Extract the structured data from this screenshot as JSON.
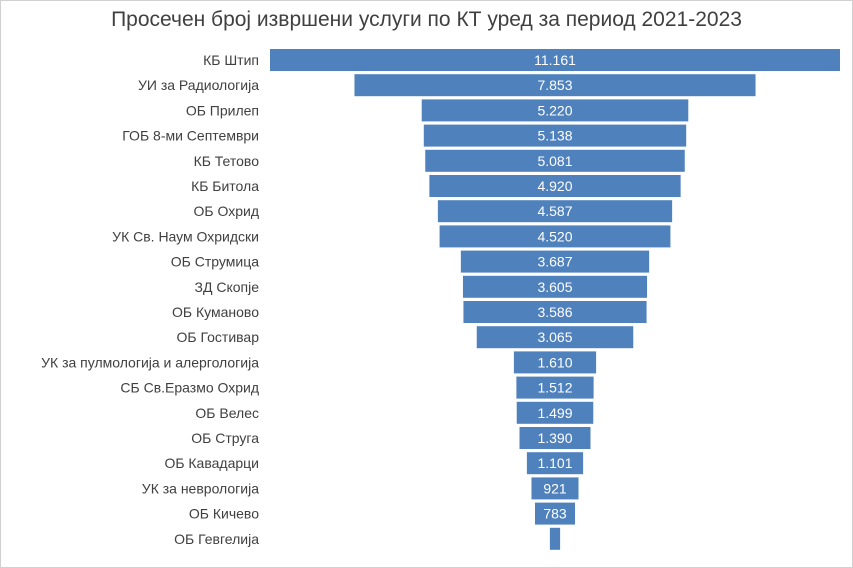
{
  "chart_data": {
    "type": "bar",
    "orientation": "horizontal-funnel",
    "title": "Просечен број извршени услуги по КТ уред за период 2021-2023",
    "categories": [
      "КБ Штип",
      "УИ за Радиологија",
      "ОБ Прилеп",
      "ГОБ 8-ми Септември",
      "КБ Тетово",
      "КБ Битола",
      "ОБ Охрид",
      "УК Св. Наум Охридски",
      "ОБ Струмица",
      "ЗД Скопје",
      "ОБ Куманово",
      "ОБ Гостивар",
      "УК за пулмологија и алергологија",
      "СБ Св.Еразмо Охрид",
      "ОБ Велес",
      "ОБ Струга",
      "ОБ Кавадарци",
      "УК за неврологија",
      "ОБ Кичево",
      "ОБ Гевгелија"
    ],
    "values": [
      11161,
      7853,
      5220,
      5138,
      5081,
      4920,
      4587,
      4520,
      3687,
      3605,
      3586,
      3065,
      1610,
      1512,
      1499,
      1390,
      1101,
      921,
      783,
      200
    ],
    "value_labels": [
      "11.161",
      "7.853",
      "5.220",
      "5.138",
      "5.081",
      "4.920",
      "4.587",
      "4.520",
      "3.687",
      "3.605",
      "3.586",
      "3.065",
      "1.610",
      "1.512",
      "1.499",
      "1.390",
      "1.101",
      "921",
      "783",
      ""
    ],
    "bar_color": "#4f81bd",
    "grid": false,
    "legend": "none"
  }
}
